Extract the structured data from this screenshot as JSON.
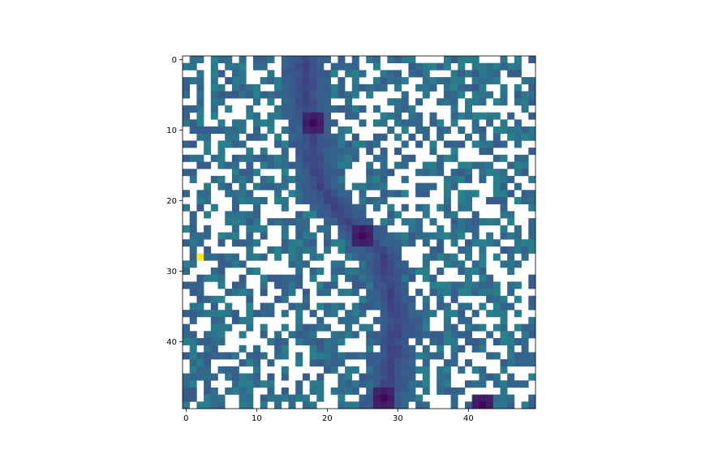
{
  "chart_data": {
    "type": "heatmap",
    "title": "",
    "xlabel": "",
    "ylabel": "",
    "rows": 50,
    "cols": 50,
    "xlim": [
      -0.5,
      49.5
    ],
    "ylim": [
      49.5,
      -0.5
    ],
    "xticks": [
      0,
      10,
      20,
      30,
      40
    ],
    "yticks": [
      0,
      10,
      20,
      30,
      40
    ],
    "grid": false,
    "colormap": "viridis",
    "missing_color": "#ffffff",
    "outlier": {
      "row": 28,
      "col": 2,
      "value": 1.0
    },
    "ridge_path": [
      [
        0,
        17
      ],
      [
        8,
        17
      ],
      [
        9,
        18
      ],
      [
        14,
        18
      ],
      [
        18,
        19
      ],
      [
        22,
        22
      ],
      [
        25,
        25
      ],
      [
        28,
        28
      ],
      [
        33,
        29
      ],
      [
        38,
        30
      ],
      [
        43,
        29
      ],
      [
        48,
        28
      ],
      [
        49,
        28
      ]
    ],
    "ridge_peaks": [
      {
        "row": 9,
        "col": 18
      },
      {
        "row": 25,
        "col": 25
      },
      {
        "row": 48,
        "col": 28
      },
      {
        "row": 49,
        "col": 42
      }
    ],
    "background_fill_fraction": 0.55
  }
}
